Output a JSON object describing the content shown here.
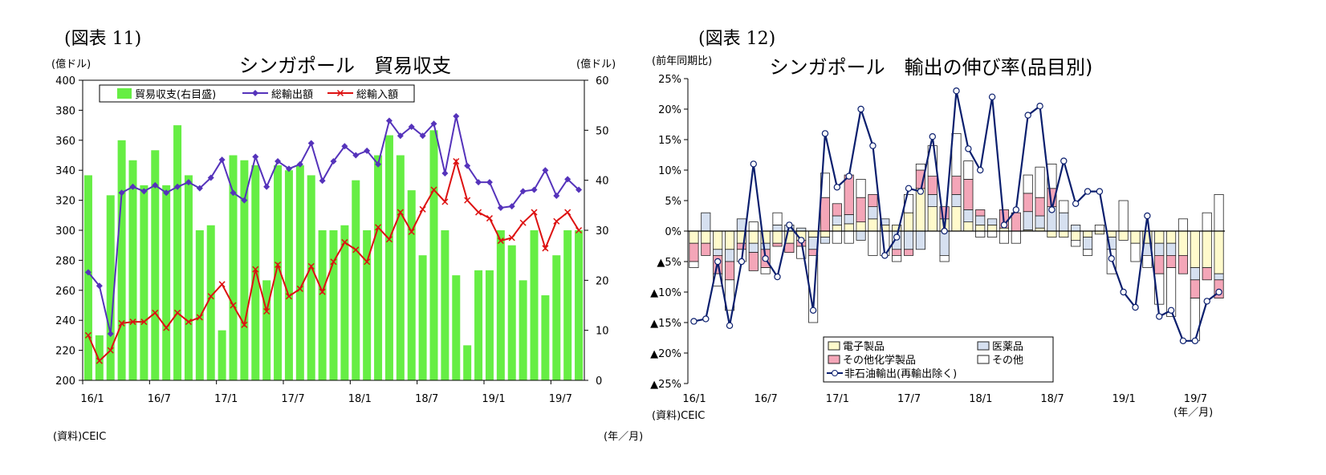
{
  "figure_labels": {
    "left": "(図表 11)",
    "right": "(図表 12)"
  },
  "chart_data": [
    {
      "type": "bar+line",
      "title": "シンガポール　貿易収支",
      "y_left_unit": "(億ドル)",
      "y_right_unit": "(億ドル)",
      "x_unit": "(年／月)",
      "source": "(資料)CEIC",
      "ylim_left": [
        200,
        400
      ],
      "ylim_right": [
        0,
        60
      ],
      "yticks_left": [
        "400",
        "380",
        "360",
        "340",
        "320",
        "300",
        "280",
        "260",
        "240",
        "220",
        "200"
      ],
      "yticks_right": [
        "60",
        "50",
        "40",
        "30",
        "20",
        "10",
        "0"
      ],
      "xtick_labels": [
        "16/1",
        "16/7",
        "17/1",
        "17/7",
        "18/1",
        "18/7",
        "19/1",
        "19/7"
      ],
      "xtick_index": [
        0,
        6,
        12,
        18,
        24,
        30,
        36,
        42
      ],
      "n_points": 45,
      "legend": [
        "貿易収支(右目盛)",
        "総輸出額",
        "総輸入額"
      ],
      "colors": {
        "balance": "#66ee44",
        "exports": "#5533bb",
        "imports": "#dd1111"
      },
      "balance_right_axis": [
        41,
        9,
        37,
        48,
        44,
        39,
        46,
        39,
        51,
        41,
        30,
        31,
        10,
        45,
        44,
        43,
        20,
        43,
        42,
        43,
        41,
        30,
        30,
        31,
        40,
        30,
        45,
        49,
        45,
        38,
        25,
        50,
        30,
        21,
        7,
        22,
        22,
        30,
        27,
        20,
        30,
        17,
        25,
        30,
        30
      ],
      "exports": [
        272,
        263,
        231,
        325,
        329,
        326,
        330,
        325,
        329,
        332,
        328,
        335,
        347,
        325,
        320,
        349,
        329,
        346,
        341,
        344,
        358,
        333,
        346,
        356,
        350,
        353,
        344,
        373,
        363,
        369,
        363,
        371,
        338,
        376,
        343,
        332,
        332,
        315,
        316,
        326,
        327,
        340,
        323,
        334,
        327
      ],
      "imports": [
        230,
        213,
        220,
        238,
        239,
        239,
        245,
        235,
        245,
        239,
        242,
        256,
        264,
        250,
        237,
        274,
        246,
        277,
        256,
        261,
        276,
        259,
        279,
        292,
        287,
        279,
        302,
        294,
        312,
        299,
        314,
        327,
        319,
        346,
        320,
        312,
        308,
        293,
        295,
        305,
        312,
        288,
        306,
        312,
        300
      ]
    },
    {
      "type": "stacked-bar+line",
      "title": "シンガポール　輸出の伸び率(品目別)",
      "y_unit": "(前年同期比)",
      "x_unit": "(年／月)",
      "source": "(資料)CEIC",
      "ylim": [
        -25,
        25
      ],
      "yticks": [
        "25%",
        "20%",
        "15%",
        "10%",
        "5%",
        "0%",
        "▲5%",
        "▲10%",
        "▲15%",
        "▲20%",
        "▲25%"
      ],
      "xtick_labels": [
        "16/1",
        "16/7",
        "17/1",
        "17/7",
        "18/1",
        "18/7",
        "19/1",
        "19/7"
      ],
      "xtick_index": [
        0,
        6,
        12,
        18,
        24,
        30,
        36,
        42
      ],
      "n_points": 45,
      "legend": [
        "電子製品",
        "医薬品",
        "その他化学製品",
        "その他",
        "非石油輸出(再輸出除く)"
      ],
      "colors": {
        "electronics": "#fffacc",
        "pharma": "#d6e0f0",
        "chemicals": "#f4a6b8",
        "other": "#ffffff",
        "line": "#0b1f6e"
      },
      "electronics": [
        -2,
        -2,
        -3,
        -3,
        -2,
        -2,
        -2,
        -2,
        -2,
        -1.5,
        -1,
        -1,
        1,
        1.2,
        1.5,
        2,
        1,
        1,
        3,
        7,
        4,
        2,
        4,
        1.5,
        1,
        1,
        0.5,
        0,
        0.2,
        0.5,
        -1,
        -1,
        -1.5,
        -1,
        -0.5,
        -1,
        -1.5,
        -2,
        -2,
        -2,
        -2,
        -4,
        -6,
        -6,
        -7
      ],
      "pharma": [
        0,
        3,
        -1,
        -2,
        2,
        -1.5,
        -1,
        1,
        1,
        0.5,
        -2,
        -1,
        1.5,
        1.5,
        -1.5,
        2,
        1,
        -3,
        -3,
        -3,
        2,
        -4,
        2,
        2,
        1.5,
        1,
        0,
        0,
        3,
        2,
        4,
        3,
        1,
        -2,
        0,
        -2,
        0,
        0,
        -2,
        -2,
        -2,
        0,
        -2,
        0,
        -1
      ],
      "chemicals": [
        -3,
        -2,
        -3,
        -3,
        -1,
        -3,
        -3,
        -0.5,
        -1.5,
        -1,
        -1,
        5.5,
        2,
        6.5,
        4,
        2,
        0,
        -1,
        -1,
        3,
        3,
        2,
        3,
        5,
        1,
        0,
        3,
        3,
        3,
        3,
        3,
        0,
        0,
        0,
        0,
        0,
        0,
        0,
        0,
        -3,
        -2,
        -3,
        -3,
        -2,
        -3
      ],
      "other": [
        -1,
        0,
        -2,
        -5,
        -2,
        1.5,
        -1,
        2,
        0,
        -2,
        -11,
        4,
        -2,
        -2,
        3,
        -4,
        -4,
        -1,
        3,
        1,
        5,
        -1,
        7,
        3,
        -1,
        -1,
        -2,
        -2,
        3,
        5,
        4,
        2,
        -1,
        -1,
        1,
        -4,
        5,
        -3,
        -2,
        -5,
        -8,
        2,
        -7,
        3,
        6
      ],
      "line": [
        -14.8,
        -14.4,
        -5,
        -15.5,
        -5,
        11,
        -4.5,
        -7.5,
        1,
        -1.5,
        -13,
        16,
        7.2,
        9,
        20,
        14,
        -4,
        -1,
        7,
        6.5,
        15.5,
        0,
        23,
        13.5,
        10,
        22,
        1,
        3.5,
        19,
        20.5,
        3.5,
        11.5,
        4.5,
        6.5,
        6.5,
        -4.5,
        -10,
        -12.5,
        2.5,
        -14,
        -13,
        -18,
        -18,
        -11.5,
        -10
      ]
    }
  ]
}
